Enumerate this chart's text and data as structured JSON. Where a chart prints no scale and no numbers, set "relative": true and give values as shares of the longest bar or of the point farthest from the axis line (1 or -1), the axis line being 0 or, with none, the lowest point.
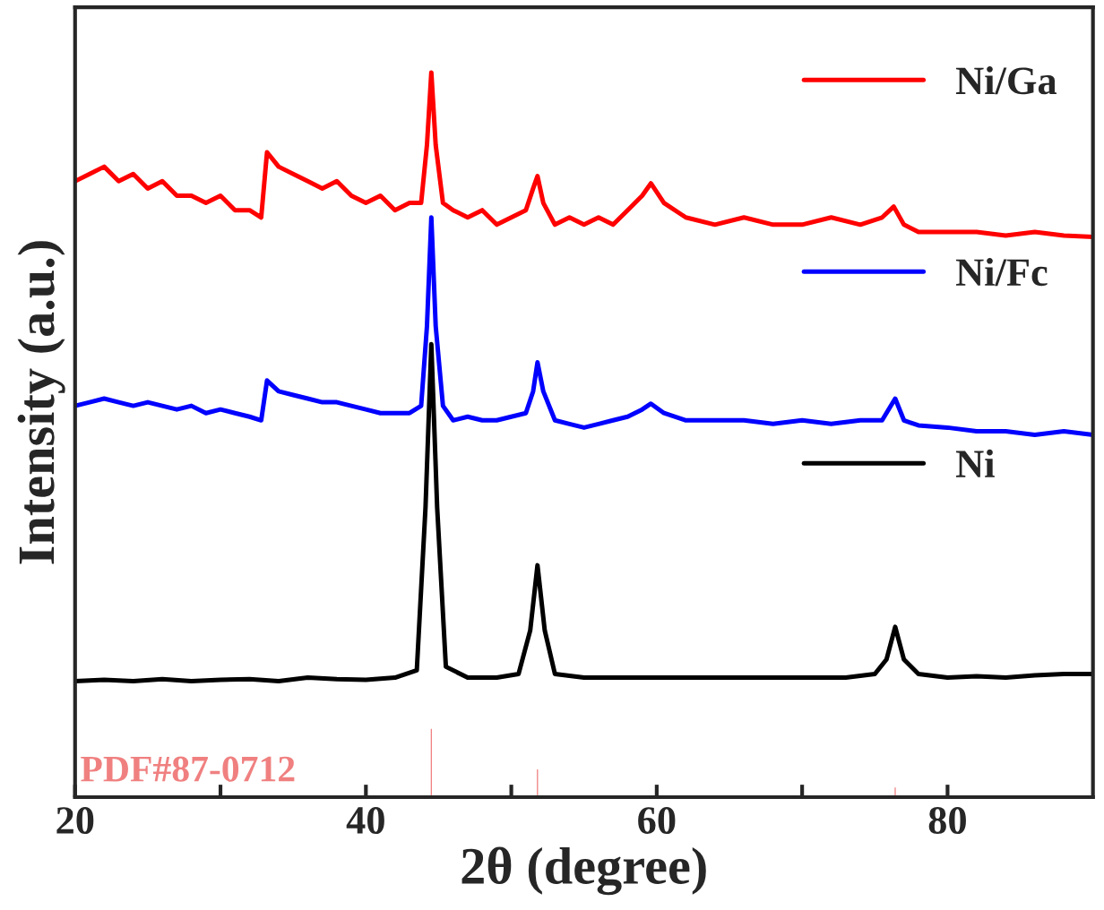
{
  "chart_data": {
    "type": "line",
    "relative": true,
    "xlabel": "2θ (degree)",
    "ylabel": "Intensity (a.u.)",
    "xlim": [
      20,
      90
    ],
    "xticks": [
      20,
      {
        "value": 30,
        "label": null
      },
      40,
      {
        "value": 50,
        "label": null
      },
      60,
      {
        "value": 70,
        "label": null
      },
      80
    ],
    "legend": "right",
    "grid": false,
    "series": [
      {
        "name": "Ni/Ga",
        "color": "#ff0000",
        "x": [
          20,
          21,
          22,
          23,
          24,
          25,
          26,
          27,
          28,
          29,
          30,
          31,
          32,
          32.8,
          33.2,
          34,
          35,
          36,
          37,
          38,
          39,
          40,
          41,
          42,
          43,
          43.8,
          44.2,
          44.5,
          44.8,
          45.3,
          46,
          47,
          48,
          49,
          50,
          51,
          51.5,
          51.8,
          52.2,
          53,
          54,
          55,
          56,
          57,
          58,
          59,
          59.6,
          60.5,
          62,
          64,
          66,
          68,
          70,
          72,
          74,
          75.5,
          76.3,
          77,
          78,
          80,
          82,
          84,
          86,
          88,
          90
        ],
        "values": [
          0.85,
          0.86,
          0.87,
          0.85,
          0.86,
          0.84,
          0.85,
          0.83,
          0.83,
          0.82,
          0.83,
          0.81,
          0.81,
          0.8,
          0.89,
          0.87,
          0.86,
          0.85,
          0.84,
          0.85,
          0.83,
          0.82,
          0.83,
          0.81,
          0.82,
          0.82,
          0.9,
          1.0,
          0.9,
          0.82,
          0.81,
          0.8,
          0.81,
          0.79,
          0.8,
          0.81,
          0.84,
          0.857,
          0.82,
          0.79,
          0.8,
          0.79,
          0.8,
          0.79,
          0.81,
          0.83,
          0.847,
          0.82,
          0.8,
          0.79,
          0.8,
          0.79,
          0.79,
          0.8,
          0.79,
          0.8,
          0.815,
          0.79,
          0.78,
          0.78,
          0.78,
          0.775,
          0.78,
          0.775,
          0.773
        ]
      },
      {
        "name": "Ni/Fc",
        "color": "#0000ff",
        "x": [
          20,
          21,
          22,
          23,
          24,
          25,
          26,
          27,
          28,
          29,
          30,
          31,
          32,
          32.8,
          33.2,
          34,
          35,
          36,
          37,
          38,
          39,
          40,
          41,
          42,
          43,
          43.8,
          44.2,
          44.5,
          44.8,
          45.3,
          46,
          47,
          48,
          49,
          50,
          51,
          51.5,
          51.8,
          52.2,
          53,
          54,
          55,
          56,
          57,
          58,
          59,
          59.6,
          60.5,
          62,
          64,
          66,
          68,
          70,
          72,
          74,
          75.5,
          76.4,
          77,
          78,
          80,
          82,
          84,
          86,
          88,
          90
        ],
        "values": [
          0.54,
          0.545,
          0.55,
          0.545,
          0.54,
          0.545,
          0.54,
          0.535,
          0.54,
          0.53,
          0.535,
          0.53,
          0.525,
          0.52,
          0.575,
          0.56,
          0.555,
          0.55,
          0.545,
          0.545,
          0.54,
          0.535,
          0.53,
          0.53,
          0.53,
          0.54,
          0.65,
          0.8,
          0.65,
          0.54,
          0.52,
          0.525,
          0.52,
          0.52,
          0.525,
          0.53,
          0.56,
          0.6,
          0.56,
          0.52,
          0.515,
          0.51,
          0.515,
          0.52,
          0.525,
          0.535,
          0.543,
          0.53,
          0.52,
          0.52,
          0.52,
          0.515,
          0.52,
          0.515,
          0.52,
          0.52,
          0.55,
          0.52,
          0.513,
          0.51,
          0.505,
          0.505,
          0.5,
          0.505,
          0.5
        ]
      },
      {
        "name": "Ni",
        "color": "#000000",
        "x": [
          20,
          22,
          24,
          26,
          28,
          30,
          32,
          34,
          36,
          38,
          40,
          42,
          43.5,
          44.1,
          44.5,
          44.9,
          45.5,
          47,
          49,
          50.5,
          51.3,
          51.8,
          52.3,
          53,
          55,
          58,
          61,
          64,
          67,
          70,
          73,
          75,
          75.8,
          76.4,
          77,
          78,
          80,
          82,
          84,
          86,
          88,
          90
        ],
        "values": [
          0.16,
          0.162,
          0.16,
          0.163,
          0.16,
          0.162,
          0.163,
          0.16,
          0.165,
          0.163,
          0.162,
          0.165,
          0.175,
          0.4,
          0.625,
          0.4,
          0.18,
          0.165,
          0.165,
          0.17,
          0.23,
          0.32,
          0.23,
          0.17,
          0.165,
          0.165,
          0.165,
          0.165,
          0.165,
          0.165,
          0.165,
          0.17,
          0.19,
          0.235,
          0.19,
          0.17,
          0.165,
          0.167,
          0.165,
          0.168,
          0.17,
          0.17
        ]
      },
      {
        "type": "bar",
        "name": "PDF#87-0712",
        "color": "#f08080",
        "x": [
          44.5,
          51.8,
          76.4
        ],
        "values": [
          0.096,
          0.04,
          0.015
        ]
      }
    ]
  }
}
